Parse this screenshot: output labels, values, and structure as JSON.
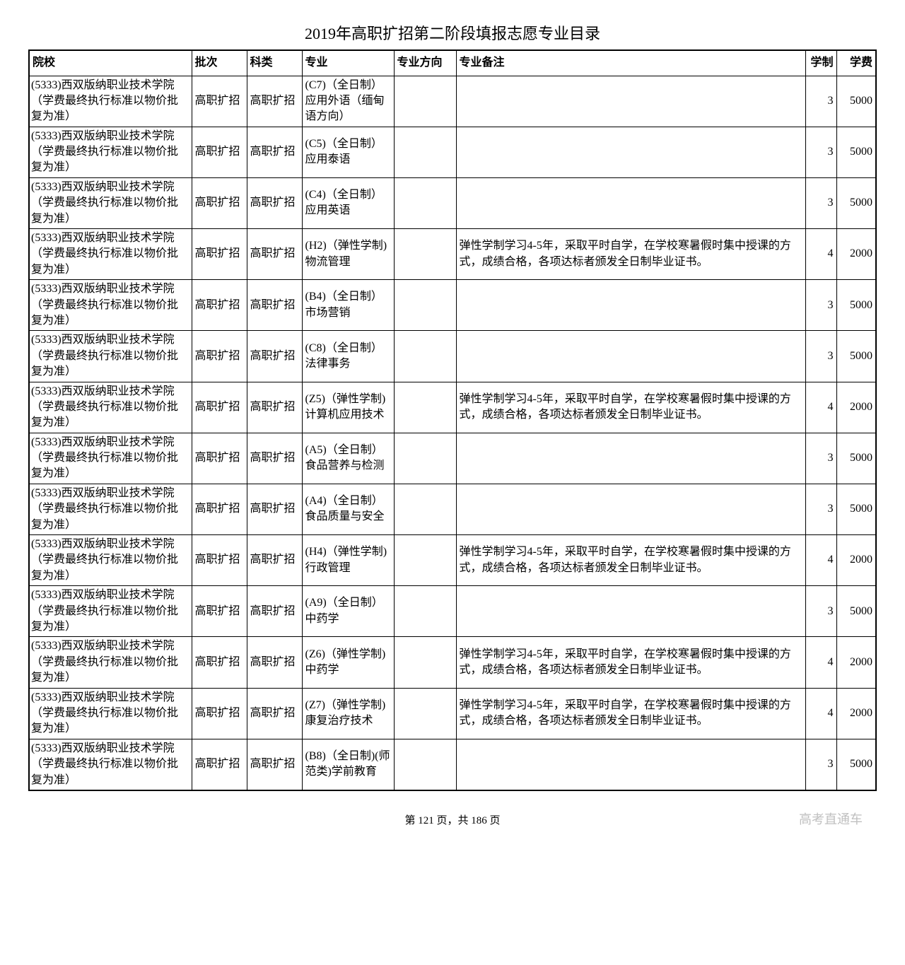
{
  "title": "2019年高职扩招第二阶段填报志愿专业目录",
  "columns": {
    "school": "院校",
    "batch": "批次",
    "category": "科类",
    "major": "专业",
    "direction": "专业方向",
    "note": "专业备注",
    "duration": "学制",
    "fee": "学费"
  },
  "school_name": "(5333)西双版纳职业技术学院（学费最终执行标准以物价批复为准）",
  "batch_value": "高职扩招",
  "category_value": "高职扩招",
  "flexible_note": "弹性学制学习4-5年，采取平时自学，在学校寒暑假时集中授课的方式，成绩合格，各项达标者颁发全日制毕业证书。",
  "rows": [
    {
      "major": "(C7)（全日制）应用外语（缅甸语方向）",
      "direction": "",
      "note": "",
      "duration": "3",
      "fee": "5000"
    },
    {
      "major": "(C5)（全日制）应用泰语",
      "direction": "",
      "note": "",
      "duration": "3",
      "fee": "5000"
    },
    {
      "major": "(C4)（全日制）应用英语",
      "direction": "",
      "note": "",
      "duration": "3",
      "fee": "5000"
    },
    {
      "major": "(H2)（弹性学制)物流管理",
      "direction": "",
      "note_flexible": true,
      "duration": "4",
      "fee": "2000"
    },
    {
      "major": "(B4)（全日制）市场营销",
      "direction": "",
      "note": "",
      "duration": "3",
      "fee": "5000"
    },
    {
      "major": "(C8)（全日制）法律事务",
      "direction": "",
      "note": "",
      "duration": "3",
      "fee": "5000"
    },
    {
      "major": "(Z5)（弹性学制)计算机应用技术",
      "direction": "",
      "note_flexible": true,
      "duration": "4",
      "fee": "2000"
    },
    {
      "major": "(A5)（全日制）食品营养与检测",
      "direction": "",
      "note": "",
      "duration": "3",
      "fee": "5000"
    },
    {
      "major": "(A4)（全日制）食品质量与安全",
      "direction": "",
      "note": "",
      "duration": "3",
      "fee": "5000"
    },
    {
      "major": "(H4)（弹性学制)行政管理",
      "direction": "",
      "note_flexible": true,
      "duration": "4",
      "fee": "2000"
    },
    {
      "major": "(A9)（全日制）中药学",
      "direction": "",
      "note": "",
      "duration": "3",
      "fee": "5000"
    },
    {
      "major": "(Z6)（弹性学制)中药学",
      "direction": "",
      "note_flexible": true,
      "duration": "4",
      "fee": "2000"
    },
    {
      "major": "(Z7)（弹性学制)康复治疗技术",
      "direction": "",
      "note_flexible": true,
      "duration": "4",
      "fee": "2000"
    },
    {
      "major": "(B8)（全日制)(师范类)学前教育",
      "direction": "",
      "note": "",
      "duration": "3",
      "fee": "5000"
    }
  ],
  "footer": {
    "page_text": "第 121 页，共 186 页",
    "watermark": "高考直通车"
  }
}
